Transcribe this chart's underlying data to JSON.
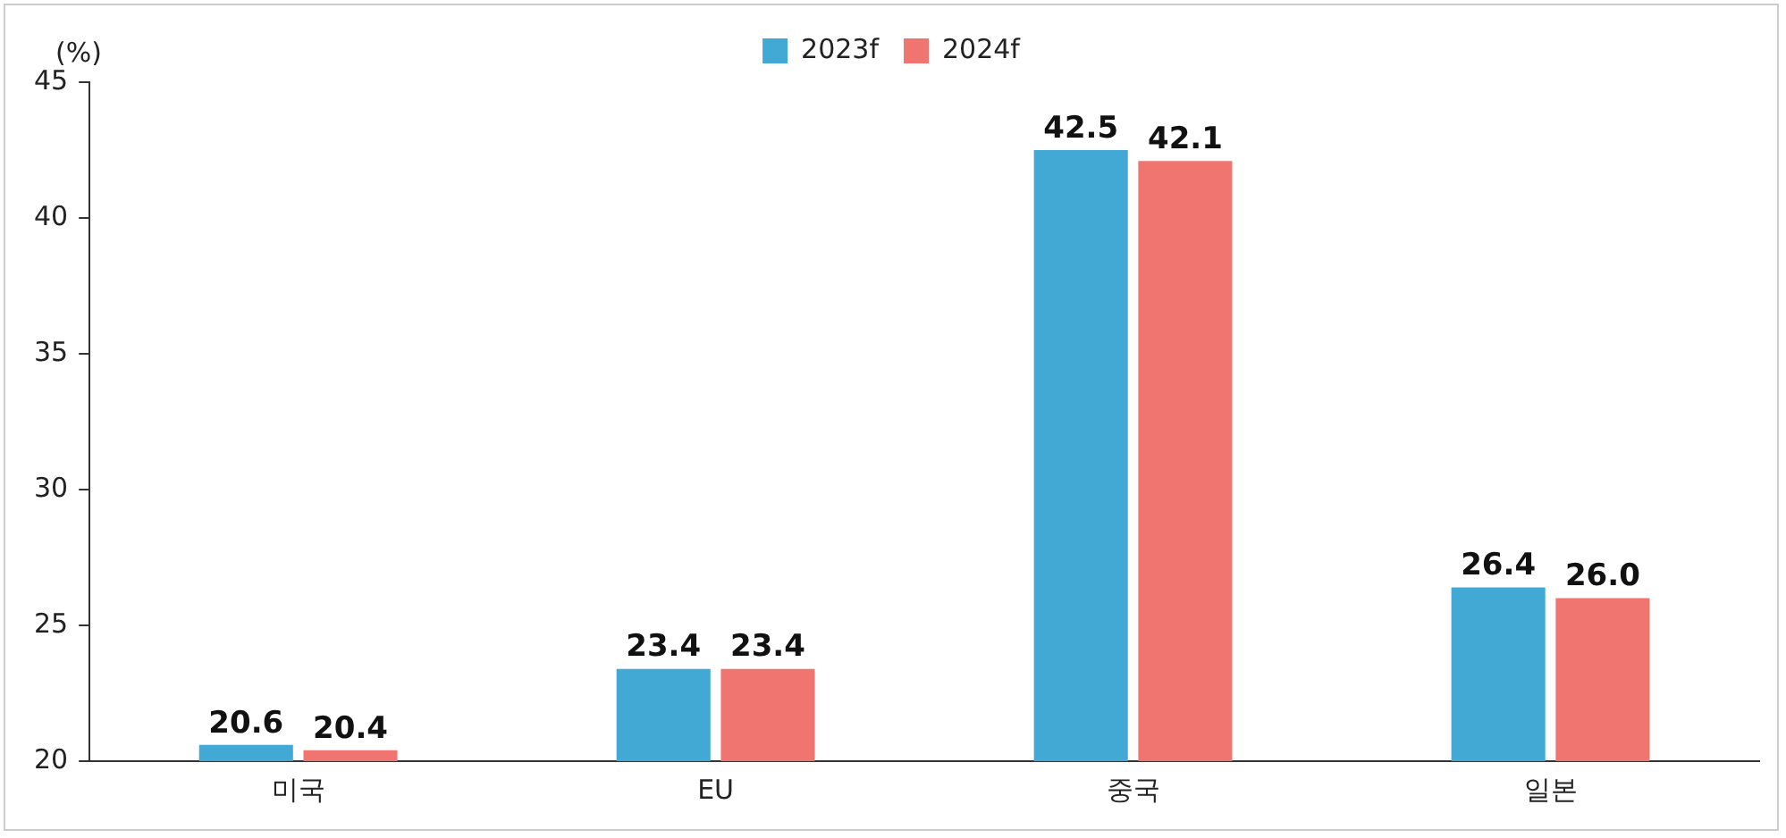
{
  "chart_data": {
    "type": "bar",
    "ylabel": "(%)",
    "categories": [
      "미국",
      "EU",
      "중국",
      "일본"
    ],
    "series": [
      {
        "name": "2023f",
        "color": "#42a9d4",
        "values": [
          20.6,
          23.4,
          42.5,
          26.4
        ],
        "value_labels": [
          "20.6",
          "23.4",
          "42.5",
          "26.4"
        ]
      },
      {
        "name": "2024f",
        "color": "#f07470",
        "values": [
          20.4,
          23.4,
          42.1,
          26.0
        ],
        "value_labels": [
          "20.4",
          "23.4",
          "42.1",
          "26.0"
        ]
      }
    ],
    "ylim": [
      20,
      45
    ],
    "yticks": [
      20,
      25,
      30,
      35,
      40,
      45
    ],
    "grid": false,
    "legend": "top"
  }
}
